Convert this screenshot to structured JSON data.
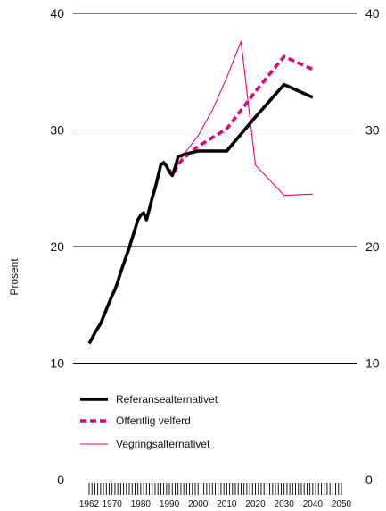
{
  "chart_data": {
    "type": "line",
    "title": "",
    "xlabel": "",
    "ylabel": "Prosent",
    "ylim": [
      0,
      40
    ],
    "xlim": [
      1962,
      2050
    ],
    "y_ticks": [
      "0",
      "10",
      "20",
      "30",
      "40"
    ],
    "y_ticks_right": [
      "0",
      "10",
      "20",
      "30",
      "40"
    ],
    "x_ticks": [
      "1962",
      "1970",
      "1980",
      "1990",
      "2000",
      "2010",
      "2020",
      "2030",
      "2040",
      "2050"
    ],
    "grid": true,
    "legend_position": "lower-left",
    "series": [
      {
        "name": "Referansealternativet",
        "color": "#000000",
        "style": "solid-thick",
        "points": [
          [
            1962,
            11.7
          ],
          [
            1963,
            12.1
          ],
          [
            1964,
            12.6
          ],
          [
            1965,
            13.0
          ],
          [
            1966,
            13.4
          ],
          [
            1967,
            14.0
          ],
          [
            1968,
            14.6
          ],
          [
            1969,
            15.2
          ],
          [
            1970,
            15.8
          ],
          [
            1971,
            16.3
          ],
          [
            1972,
            17.0
          ],
          [
            1973,
            17.8
          ],
          [
            1974,
            18.5
          ],
          [
            1975,
            19.2
          ],
          [
            1976,
            19.9
          ],
          [
            1977,
            20.7
          ],
          [
            1978,
            21.5
          ],
          [
            1979,
            22.3
          ],
          [
            1980,
            22.7
          ],
          [
            1981,
            22.9
          ],
          [
            1982,
            22.3
          ],
          [
            1983,
            23.2
          ],
          [
            1984,
            24.2
          ],
          [
            1985,
            25.0
          ],
          [
            1986,
            26.0
          ],
          [
            1987,
            27.0
          ],
          [
            1988,
            27.2
          ],
          [
            1989,
            26.9
          ],
          [
            1990,
            26.4
          ],
          [
            1991,
            26.1
          ],
          [
            1992,
            26.8
          ],
          [
            1993,
            27.7
          ],
          [
            1995,
            27.9
          ],
          [
            2000,
            28.2
          ],
          [
            2010,
            28.2
          ],
          [
            2020,
            31.1
          ],
          [
            2030,
            33.9
          ],
          [
            2040,
            32.8
          ]
        ]
      },
      {
        "name": "Offentlig velferd",
        "color": "#e6007e",
        "style": "dashed-thick",
        "points": [
          [
            1990,
            26.6
          ],
          [
            1991,
            26.1
          ],
          [
            1993,
            27.0
          ],
          [
            1995,
            27.6
          ],
          [
            2000,
            28.6
          ],
          [
            2010,
            30.1
          ],
          [
            2020,
            33.3
          ],
          [
            2030,
            36.3
          ],
          [
            2040,
            35.2
          ]
        ]
      },
      {
        "name": "Vegringsalternativet",
        "color": "#e6007e",
        "style": "solid-thin",
        "points": [
          [
            1990,
            26.6
          ],
          [
            1991,
            26.2
          ],
          [
            1995,
            27.9
          ],
          [
            2000,
            29.5
          ],
          [
            2005,
            31.7
          ],
          [
            2010,
            34.5
          ],
          [
            2015,
            37.6
          ],
          [
            2020,
            27.0
          ],
          [
            2030,
            24.4
          ],
          [
            2040,
            24.5
          ]
        ]
      }
    ]
  }
}
